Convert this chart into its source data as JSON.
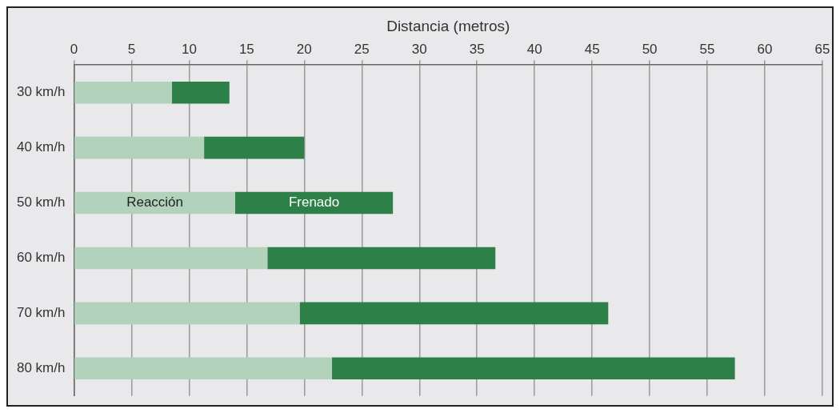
{
  "chart_data": {
    "type": "bar",
    "orientation": "horizontal",
    "stacked": true,
    "xlabel": "Distancia (metros)",
    "categories": [
      "30 km/h",
      "40 km/h",
      "50 km/h",
      "60 km/h",
      "70 km/h",
      "80 km/h"
    ],
    "series": [
      {
        "name": "Reacción",
        "color": "#b2d2bc",
        "values": [
          8.5,
          11.3,
          14,
          16.8,
          19.6,
          22.4
        ]
      },
      {
        "name": "Frenado",
        "color": "#2e8049",
        "values": [
          5,
          8.7,
          13.7,
          19.8,
          26.8,
          35
        ]
      }
    ],
    "xlim": [
      0,
      65
    ],
    "xticks": [
      0,
      5,
      10,
      15,
      20,
      25,
      30,
      35,
      40,
      45,
      50,
      55,
      60,
      65
    ],
    "grid": "x",
    "legend": false
  }
}
